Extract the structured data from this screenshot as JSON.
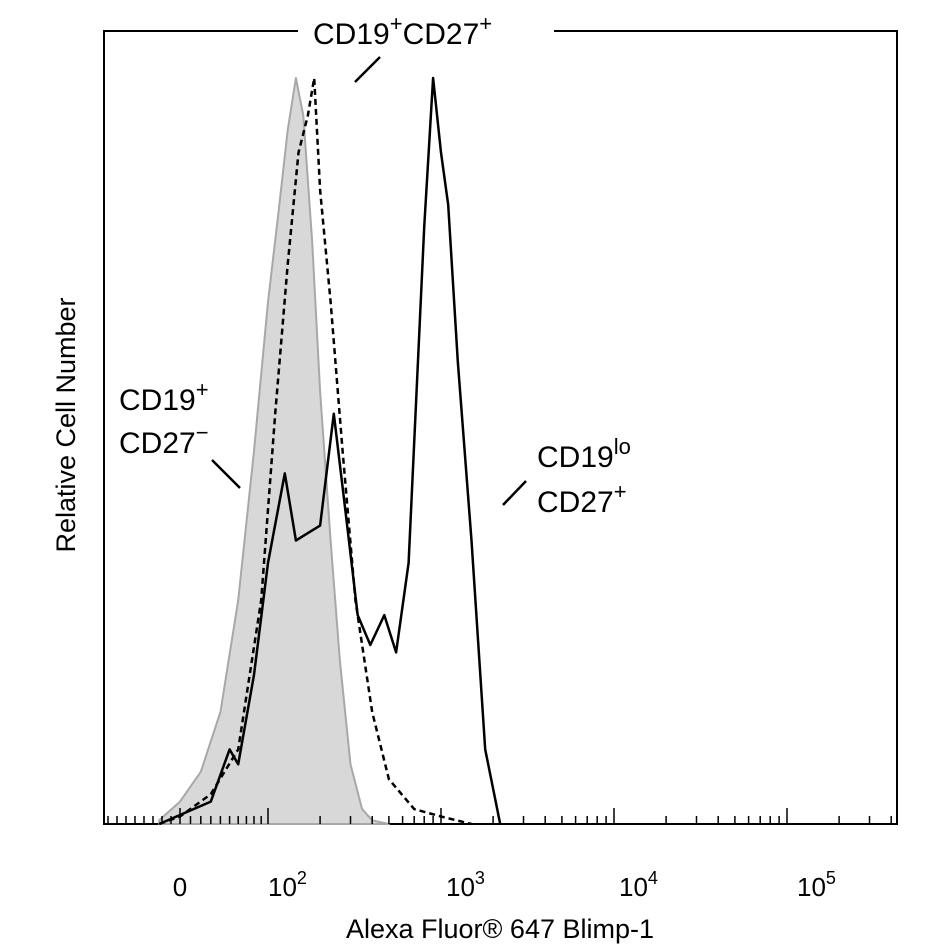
{
  "chart_data": {
    "type": "area",
    "title": "",
    "xlabel": "Alexa Fluor® 647 Blimp-1",
    "ylabel": "Relative Cell Number",
    "x_scale": "biexponential (logicle)",
    "x_ticks": [
      {
        "base": "0",
        "exp": "",
        "value": 0
      },
      {
        "base": "10",
        "exp": "2",
        "value": 100
      },
      {
        "base": "10",
        "exp": "3",
        "value": 1000
      },
      {
        "base": "10",
        "exp": "4",
        "value": 10000
      },
      {
        "base": "10",
        "exp": "5",
        "value": 100000
      }
    ],
    "ylim": [
      0,
      100
    ],
    "grid": false,
    "series": [
      {
        "name": "CD19+ CD27-",
        "style": "filled",
        "fill": "#d8d8d8",
        "stroke": "#a8a8a8",
        "x": [
          -20,
          0,
          20,
          40,
          60,
          80,
          100,
          115,
          130,
          145,
          160,
          180,
          200,
          230,
          260,
          300,
          350,
          400,
          500
        ],
        "y": [
          0.5,
          3,
          7,
          15,
          30,
          50,
          70,
          82,
          93,
          100,
          95,
          78,
          58,
          38,
          22,
          8,
          2,
          0.5,
          0
        ]
      },
      {
        "name": "CD19+CD27+",
        "style": "dashed",
        "stroke": "#000000",
        "x": [
          -20,
          0,
          30,
          60,
          90,
          110,
          130,
          150,
          170,
          185,
          200,
          230,
          270,
          320,
          400,
          500,
          700,
          1000,
          1500
        ],
        "y": [
          0,
          1,
          4,
          10,
          30,
          55,
          75,
          90,
          95,
          100,
          85,
          70,
          50,
          30,
          15,
          6,
          2,
          1,
          0
        ]
      },
      {
        "name": "CD19lo CD27+",
        "style": "solid",
        "stroke": "#000000",
        "x": [
          -20,
          30,
          50,
          60,
          80,
          100,
          125,
          145,
          170,
          200,
          240,
          280,
          330,
          390,
          470,
          550,
          650,
          800,
          900,
          1000,
          1100,
          1250,
          1500,
          1800,
          2200
        ],
        "y": [
          0,
          3,
          10,
          8,
          20,
          35,
          47,
          38,
          39,
          40,
          55,
          42,
          28,
          24,
          28,
          23,
          35,
          80,
          100,
          90,
          83,
          62,
          38,
          10,
          0
        ]
      }
    ],
    "annotations": [
      {
        "id": "cd19pos-cd27pos",
        "base1": "CD19",
        "sup1": "+",
        "base2": "CD27",
        "sup2": "+"
      },
      {
        "id": "cd19pos-cd27neg",
        "line1": "CD19",
        "line1_sup": "+",
        "line2": "CD27",
        "line2_sup": "−"
      },
      {
        "id": "cd19lo-cd27pos",
        "line1": "CD19",
        "line1_sup": "lo",
        "line2": "CD27",
        "line2_sup": "+"
      }
    ]
  }
}
